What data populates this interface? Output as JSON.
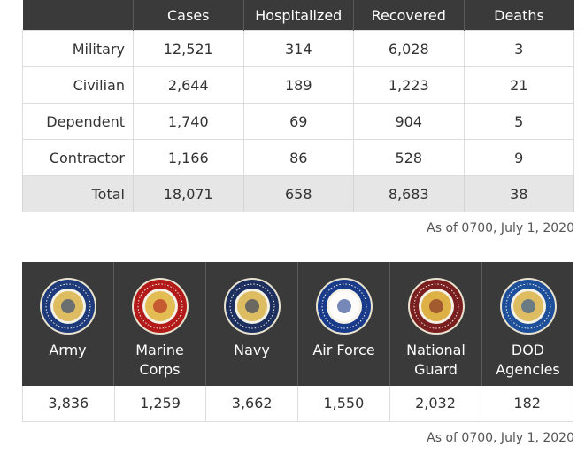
{
  "cases_table": {
    "headers": [
      "",
      "Cases",
      "Hospitalized",
      "Recovered",
      "Deaths"
    ],
    "rows": [
      {
        "label": "Military",
        "cases": "12,521",
        "hospitalized": "314",
        "recovered": "6,028",
        "deaths": "3"
      },
      {
        "label": "Civilian",
        "cases": "2,644",
        "hospitalized": "189",
        "recovered": "1,223",
        "deaths": "21"
      },
      {
        "label": "Dependent",
        "cases": "1,740",
        "hospitalized": "69",
        "recovered": "904",
        "deaths": "5"
      },
      {
        "label": "Contractor",
        "cases": "1,166",
        "hospitalized": "86",
        "recovered": "528",
        "deaths": "9"
      }
    ],
    "total": {
      "label": "Total",
      "cases": "18,071",
      "hospitalized": "658",
      "recovered": "8,683",
      "deaths": "38"
    },
    "as_of": "As of 0700, July 1, 2020"
  },
  "branches_table": {
    "branches": [
      {
        "name_line1": "Army",
        "name_line2": "",
        "value": "3,836",
        "seal_icon": "army-seal-icon",
        "seal_color": "#1f3a7a",
        "inner_color": "#d9b44a"
      },
      {
        "name_line1": "Marine",
        "name_line2": "Corps",
        "value": "1,259",
        "seal_icon": "marine-corps-seal-icon",
        "seal_color": "#b31b1b",
        "inner_color": "#e0b33a"
      },
      {
        "name_line1": "Navy",
        "name_line2": "",
        "value": "3,662",
        "seal_icon": "navy-seal-icon",
        "seal_color": "#1c2f5e",
        "inner_color": "#d9b44a"
      },
      {
        "name_line1": "Air Force",
        "name_line2": "",
        "value": "1,550",
        "seal_icon": "air-force-seal-icon",
        "seal_color": "#1a3b8a",
        "inner_color": "#ffffff"
      },
      {
        "name_line1": "National",
        "name_line2": "Guard",
        "value": "2,032",
        "seal_icon": "national-guard-seal-icon",
        "seal_color": "#7a1f1f",
        "inner_color": "#d9a62a"
      },
      {
        "name_line1": "DOD",
        "name_line2": "Agencies",
        "value": "182",
        "seal_icon": "dod-seal-icon",
        "seal_color": "#1e4f9a",
        "inner_color": "#d9b44a"
      }
    ],
    "as_of": "As of 0700, July 1, 2020"
  }
}
